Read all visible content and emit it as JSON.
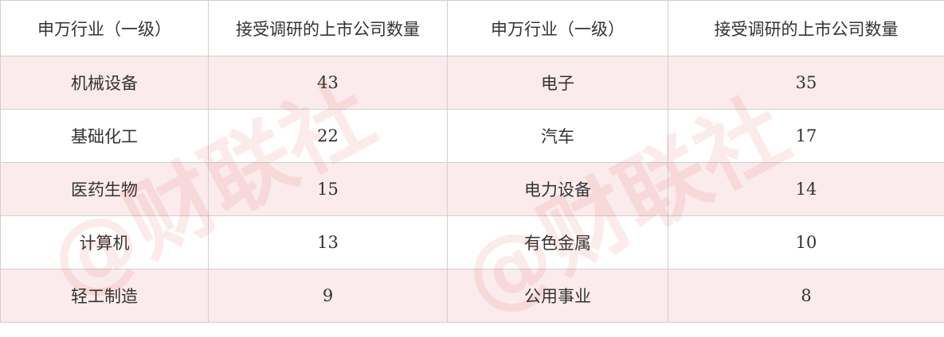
{
  "table": {
    "headers": [
      "申万行业（一级）",
      "接受调研的上市公司数量",
      "申万行业（一级）",
      "接受调研的上市公司数量"
    ],
    "rows": [
      [
        "机械设备",
        "43",
        "电子",
        "35"
      ],
      [
        "基础化工",
        "22",
        "汽车",
        "17"
      ],
      [
        "医药生物",
        "15",
        "电力设备",
        "14"
      ],
      [
        "计算机",
        "13",
        "有色金属",
        "10"
      ],
      [
        "轻工制造",
        "9",
        "公用事业",
        "8"
      ]
    ]
  },
  "watermark": {
    "text": "财联社",
    "color": "#e05050"
  },
  "colors": {
    "stripe": "#fae8ea",
    "border": "#d0d0d0"
  }
}
